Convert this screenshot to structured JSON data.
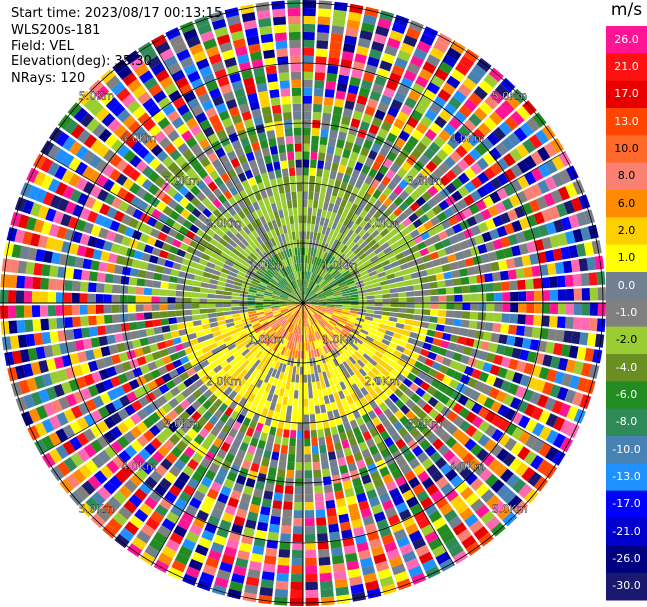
{
  "header": {
    "start_time": "Start time: 2023/08/17 00:13:15",
    "instrument": "WLS200s-181",
    "field": "Field: VEL",
    "elevation": "Elevation(deg): 35.30",
    "nrays": "NRays: 120"
  },
  "ppi": {
    "n_rays": 120,
    "ring_labels": [
      "1.0Km",
      "2.0Km",
      "3.0Km",
      "4.0Km",
      "5.0Km"
    ]
  },
  "colorbar": {
    "unit": "m/s",
    "labels": [
      "26.0",
      "21.0",
      "17.0",
      "13.0",
      "10.0",
      "8.0",
      "6.0",
      "2.0",
      "1.0",
      "0.0",
      "-1.0",
      "-2.0",
      "-4.0",
      "-6.0",
      "-8.0",
      "-10.0",
      "-13.0",
      "-17.0",
      "-21.0",
      "-26.0",
      "-30.0"
    ],
    "colors": [
      "#ff1493",
      "#ff1111",
      "#e80000",
      "#ff4500",
      "#ff6a2a",
      "#fa8072",
      "#ff8c00",
      "#ffd000",
      "#ffff00",
      "#708090",
      "#808080",
      "#9acd32",
      "#6b8e23",
      "#228b22",
      "#2e8b57",
      "#4682b4",
      "#1e90ff",
      "#0000ff",
      "#0000cd",
      "#000080",
      "#191970"
    ]
  }
}
